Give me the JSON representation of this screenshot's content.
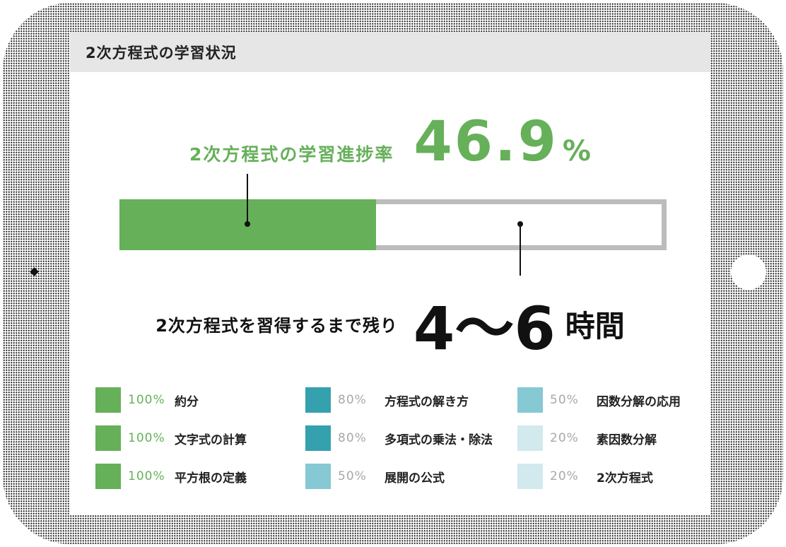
{
  "header": {
    "title": "2次方程式の学習状況"
  },
  "progress": {
    "label": "2次方程式の学習進捗率",
    "value": "46.9",
    "unit": "%",
    "fraction": 0.469
  },
  "remaining": {
    "label": "2次方程式を習得するまで残り",
    "value": "4～6",
    "unit": "時間"
  },
  "colors": {
    "green": "#66b05a",
    "teal": "#35a0ae",
    "light_teal": "#86c8d3",
    "pale_teal": "#d2e9ee",
    "bar_border": "#bcbcbc"
  },
  "topics": [
    {
      "percent": "100%",
      "name": "約分",
      "color": "#66b05a",
      "pct_color": "#66b05a"
    },
    {
      "percent": "100%",
      "name": "文字式の計算",
      "color": "#66b05a",
      "pct_color": "#66b05a"
    },
    {
      "percent": "100%",
      "name": "平方根の定義",
      "color": "#66b05a",
      "pct_color": "#66b05a"
    },
    {
      "percent": "80%",
      "name": "方程式の解き方",
      "color": "#35a0ae",
      "pct_color": "#a8a8a8"
    },
    {
      "percent": "80%",
      "name": "多項式の乗法・除法",
      "color": "#35a0ae",
      "pct_color": "#a8a8a8"
    },
    {
      "percent": "50%",
      "name": "展開の公式",
      "color": "#86c8d3",
      "pct_color": "#a8a8a8"
    },
    {
      "percent": "50%",
      "name": "因数分解の応用",
      "color": "#86c8d3",
      "pct_color": "#a8a8a8"
    },
    {
      "percent": "20%",
      "name": "素因数分解",
      "color": "#d2e9ee",
      "pct_color": "#a8a8a8"
    },
    {
      "percent": "20%",
      "name": "2次方程式",
      "color": "#d2e9ee",
      "pct_color": "#a8a8a8"
    }
  ]
}
